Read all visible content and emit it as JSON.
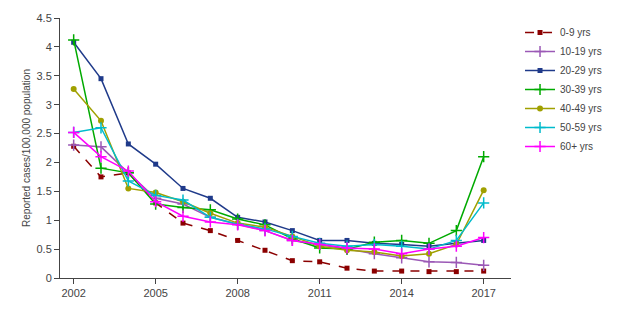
{
  "chart_data": {
    "type": "line",
    "x": [
      2002,
      2003,
      2004,
      2005,
      2006,
      2007,
      2008,
      2009,
      2010,
      2011,
      2012,
      2013,
      2014,
      2015,
      2016,
      2017
    ],
    "series": [
      {
        "name": "0-9 yrs",
        "color": "#8B0000",
        "marker": "square",
        "line_style": "dashed",
        "values": [
          2.28,
          1.75,
          1.82,
          1.3,
          0.95,
          0.82,
          0.65,
          0.48,
          0.3,
          0.28,
          0.17,
          0.12,
          0.12,
          0.11,
          0.11,
          0.12
        ]
      },
      {
        "name": "10-19 yrs",
        "color": "#9B59B6",
        "marker": "plus",
        "line_style": "solid",
        "values": [
          2.3,
          2.27,
          1.82,
          1.38,
          1.28,
          1.05,
          0.93,
          0.82,
          0.65,
          0.58,
          0.5,
          0.42,
          0.35,
          0.28,
          0.27,
          0.22
        ]
      },
      {
        "name": "20-29 yrs",
        "color": "#1F3A8A",
        "marker": "square",
        "line_style": "solid",
        "values": [
          4.08,
          3.45,
          2.32,
          1.97,
          1.55,
          1.38,
          1.05,
          0.97,
          0.82,
          0.65,
          0.65,
          0.6,
          0.58,
          0.55,
          0.6,
          0.65
        ]
      },
      {
        "name": "30-39 yrs",
        "color": "#00AA00",
        "marker": "plus",
        "line_style": "solid",
        "values": [
          4.12,
          1.9,
          1.82,
          1.28,
          1.22,
          1.18,
          1.02,
          0.92,
          0.68,
          0.52,
          0.5,
          0.62,
          0.65,
          0.6,
          0.82,
          2.1
        ]
      },
      {
        "name": "40-49 yrs",
        "color": "#A0A000",
        "marker": "circle",
        "line_style": "solid",
        "values": [
          3.27,
          2.72,
          1.55,
          1.48,
          1.32,
          1.12,
          0.95,
          0.88,
          0.72,
          0.55,
          0.48,
          0.45,
          0.38,
          0.42,
          0.58,
          1.52
        ]
      },
      {
        "name": "50-59 yrs",
        "color": "#00BBCC",
        "marker": "plus",
        "line_style": "solid",
        "values": [
          2.52,
          2.6,
          1.68,
          1.43,
          1.35,
          1.05,
          0.93,
          0.85,
          0.72,
          0.6,
          0.55,
          0.58,
          0.55,
          0.5,
          0.65,
          1.3
        ]
      },
      {
        "name": "60+ yrs",
        "color": "#FF00FF",
        "marker": "plus",
        "line_style": "solid",
        "values": [
          2.52,
          2.1,
          1.85,
          1.32,
          1.07,
          0.97,
          0.92,
          0.82,
          0.65,
          0.58,
          0.52,
          0.5,
          0.42,
          0.5,
          0.55,
          0.7
        ]
      }
    ],
    "ylabel": "Reported cases/100,000 population",
    "xlim": [
      2001.5,
      2018.0
    ],
    "xticks": [
      2002,
      2005,
      2008,
      2011,
      2014,
      2017
    ],
    "ylim": [
      0,
      4.5
    ],
    "yticks": [
      0,
      0.5,
      1.0,
      1.5,
      2.0,
      2.5,
      3.0,
      3.5,
      4.0,
      4.5
    ],
    "grid": false,
    "legend": "upper right"
  }
}
